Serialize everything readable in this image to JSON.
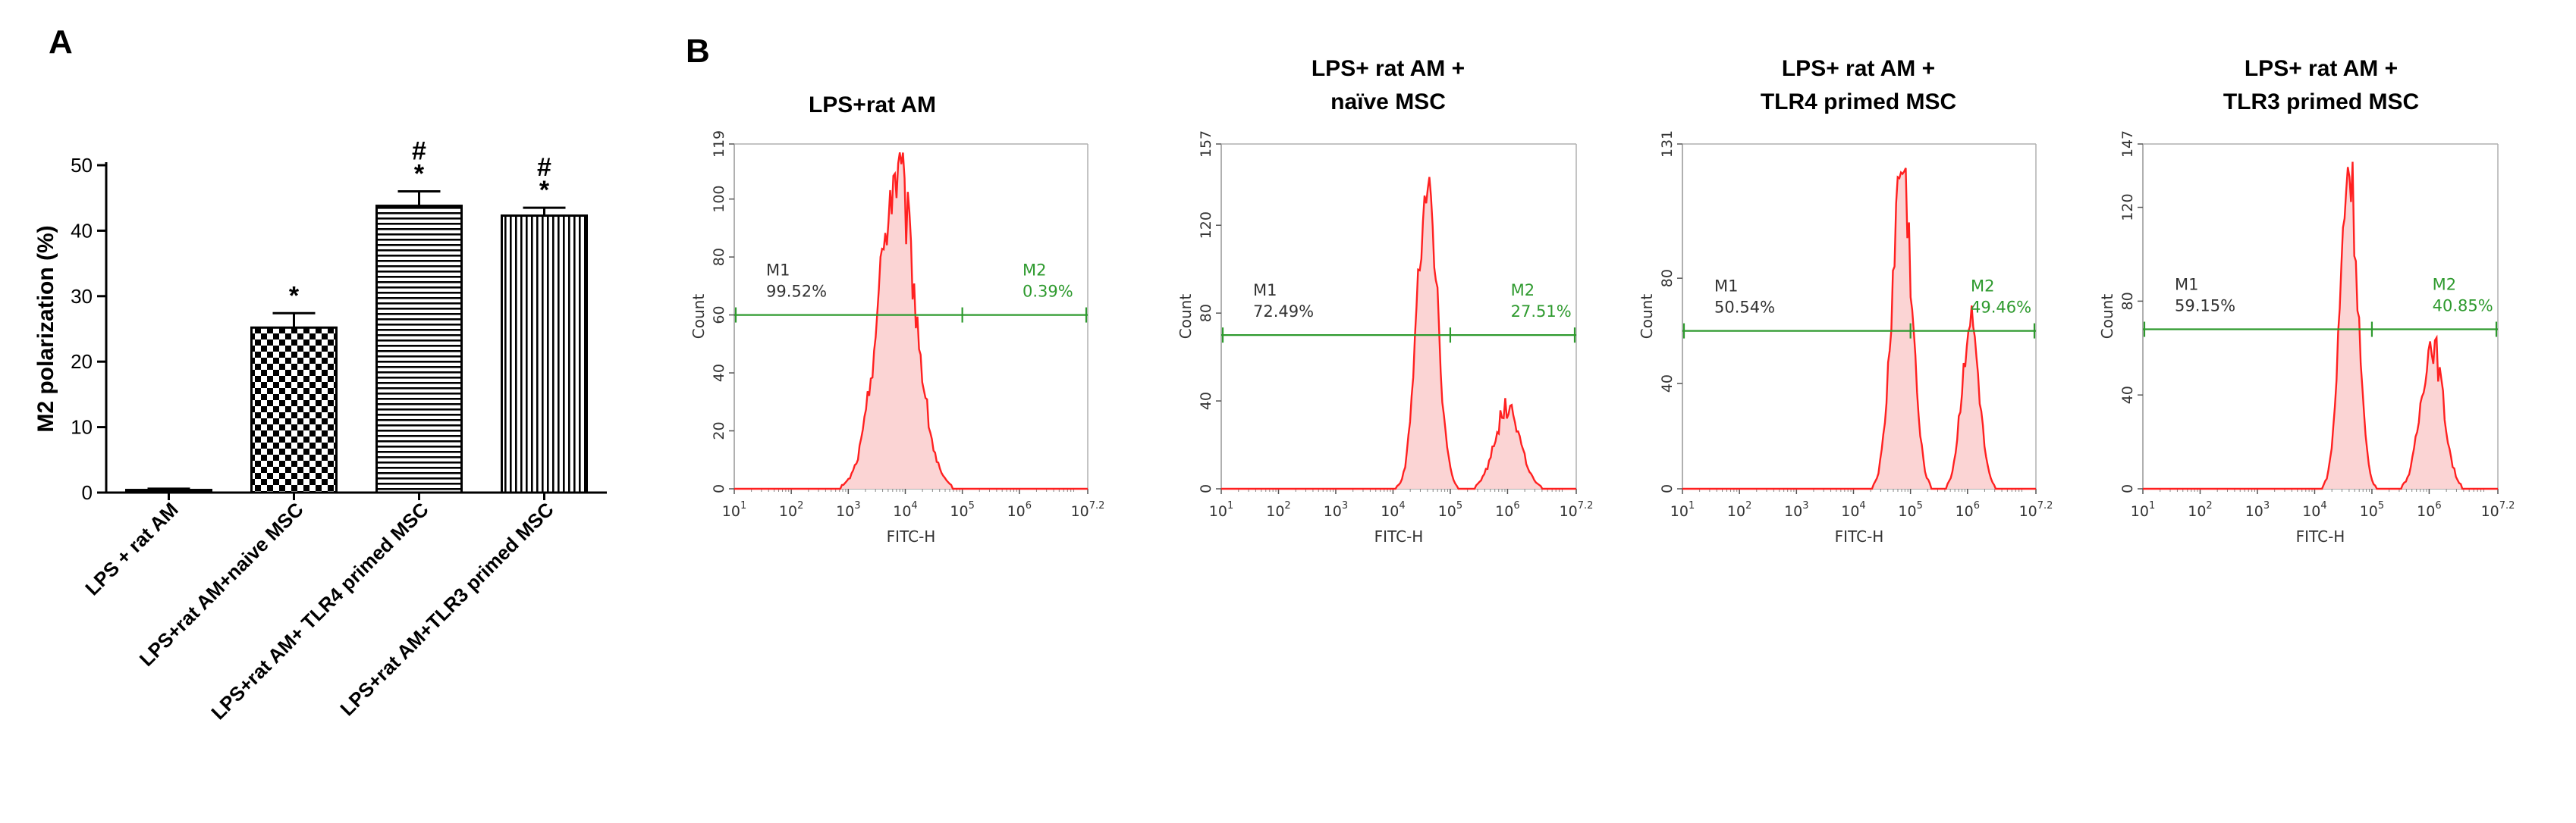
{
  "panel_a": {
    "letter": "A",
    "chart_data": {
      "type": "bar",
      "title": "",
      "ylabel": "M2 polarization (%)",
      "ylim": [
        0,
        50
      ],
      "yticks": [
        0,
        10,
        20,
        30,
        40,
        50
      ],
      "categories": [
        "LPS + rat AM",
        "LPS+rat AM+naive MSC",
        "LPS+rat AM+ TLR4 primed MSC",
        "LPS+rat AM+TLR3 primed MSC"
      ],
      "values": [
        0.4,
        25.2,
        43.8,
        42.3
      ],
      "errors": [
        0.2,
        2.2,
        2.2,
        1.2
      ],
      "significance": [
        {
          "star": "",
          "hash": ""
        },
        {
          "star": "*",
          "hash": ""
        },
        {
          "star": "*",
          "hash": "#"
        },
        {
          "star": "*",
          "hash": "#"
        }
      ],
      "patterns": [
        "solid",
        "checkerboard",
        "horizontal",
        "vertical"
      ]
    }
  },
  "panel_b": {
    "letter": "B",
    "histograms": [
      {
        "title_lines": [
          "LPS+rat  AM"
        ],
        "type": "histogram",
        "ymax": 119,
        "yticks": [
          0,
          20,
          40,
          60,
          80,
          100,
          119
        ],
        "xlabel": "FITC-H",
        "ylabel": "Count",
        "m1_label": "M1",
        "m1_pct": "99.52%",
        "m2_label": "M2",
        "m2_pct": "0.39%",
        "gate_count": 60,
        "gate_split_log": 5,
        "peaks": [
          {
            "center_log": 3.85,
            "height": 108,
            "width": 0.32
          }
        ]
      },
      {
        "title_lines": [
          "LPS+ rat AM +",
          "naïve MSC"
        ],
        "type": "histogram",
        "ymax": 157,
        "yticks": [
          0,
          40,
          80,
          120,
          157
        ],
        "xlabel": "FITC-H",
        "ylabel": "Count",
        "m1_label": "M1",
        "m1_pct": "72.49%",
        "m2_label": "M2",
        "m2_pct": "27.51%",
        "gate_count": 70,
        "gate_split_log": 5,
        "peaks": [
          {
            "center_log": 4.6,
            "height": 146,
            "width": 0.17
          },
          {
            "center_log": 6.0,
            "height": 37,
            "width": 0.22
          }
        ]
      },
      {
        "title_lines": [
          "LPS+ rat AM +",
          "TLR4 primed  MSC"
        ],
        "type": "histogram",
        "ymax": 131,
        "yticks": [
          0,
          40,
          80,
          131
        ],
        "xlabel": "FITC-H",
        "ylabel": "Count",
        "m1_label": "M1",
        "m1_pct": "50.54%",
        "m2_label": "M2",
        "m2_pct": "49.46%",
        "gate_count": 60,
        "gate_split_log": 5,
        "peaks": [
          {
            "center_log": 4.85,
            "height": 122,
            "width": 0.17
          },
          {
            "center_log": 6.05,
            "height": 63,
            "width": 0.15
          }
        ]
      },
      {
        "title_lines": [
          "LPS+ rat AM +",
          "TLR3 primed  MSC"
        ],
        "type": "histogram",
        "ymax": 147,
        "yticks": [
          0,
          40,
          80,
          120,
          147
        ],
        "xlabel": "FITC-H",
        "ylabel": "Count",
        "m1_label": "M1",
        "m1_pct": "59.15%",
        "m2_label": "M2",
        "m2_pct": "40.85%",
        "gate_count": 68,
        "gate_split_log": 5,
        "peaks": [
          {
            "center_log": 4.6,
            "height": 138,
            "width": 0.15
          },
          {
            "center_log": 6.05,
            "height": 62,
            "width": 0.19
          }
        ]
      }
    ],
    "xticks": [
      {
        "base": "10",
        "exp": "1"
      },
      {
        "base": "10",
        "exp": "2"
      },
      {
        "base": "10",
        "exp": "3"
      },
      {
        "base": "10",
        "exp": "4"
      },
      {
        "base": "10",
        "exp": "5"
      },
      {
        "base": "10",
        "exp": "6"
      },
      {
        "base": "10",
        "exp": "7.2"
      }
    ],
    "colors": {
      "trace": "#ff2020",
      "fill": "#fbd4d4",
      "gate": "#2e9a2e",
      "frame": "#b0b0b0"
    }
  }
}
